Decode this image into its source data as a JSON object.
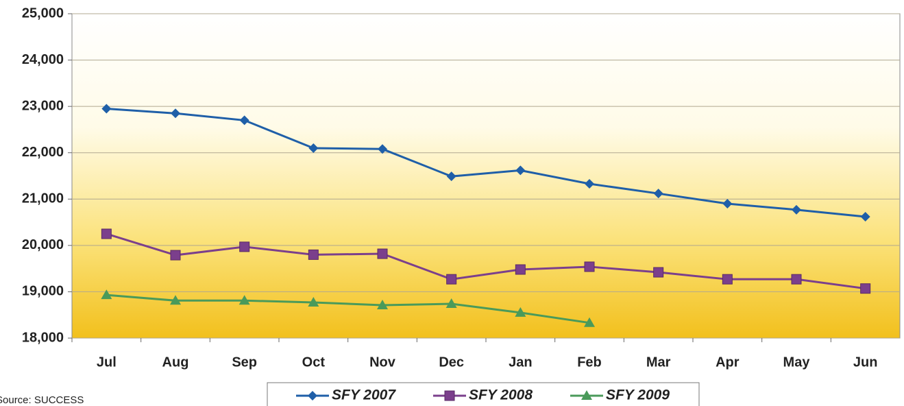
{
  "chart_data": {
    "type": "line",
    "categories": [
      "Jul",
      "Aug",
      "Sep",
      "Oct",
      "Nov",
      "Dec",
      "Jan",
      "Feb",
      "Mar",
      "Apr",
      "May",
      "Jun"
    ],
    "series": [
      {
        "name": "SFY 2007",
        "color": "#1f5fa8",
        "marker": "diamond",
        "values": [
          22950,
          22850,
          22700,
          22100,
          22080,
          21490,
          21620,
          21330,
          21120,
          20900,
          20770,
          20620
        ]
      },
      {
        "name": "SFY 2008",
        "color": "#7b3f8c",
        "marker": "square",
        "values": [
          20250,
          19790,
          19970,
          19800,
          19820,
          19270,
          19480,
          19540,
          19420,
          19270,
          19270,
          19070
        ]
      },
      {
        "name": "SFY 2009",
        "color": "#4a9a5a",
        "marker": "triangle",
        "values": [
          18930,
          18810,
          18810,
          18770,
          18710,
          18740,
          18550,
          18330,
          null,
          null,
          null,
          null
        ]
      }
    ],
    "ylim": [
      18000,
      25000
    ],
    "yticks": [
      {
        "value": 18000,
        "label": "18,000"
      },
      {
        "value": 19000,
        "label": "19,000"
      },
      {
        "value": 20000,
        "label": "20,000"
      },
      {
        "value": 21000,
        "label": "21,000"
      },
      {
        "value": 22000,
        "label": "22,000"
      },
      {
        "value": 23000,
        "label": "23,000"
      },
      {
        "value": 24000,
        "label": "24,000"
      },
      {
        "value": 25000,
        "label": "25,000"
      }
    ],
    "grid": true,
    "legend": "bottom",
    "source": "Source: SUCCESS"
  }
}
